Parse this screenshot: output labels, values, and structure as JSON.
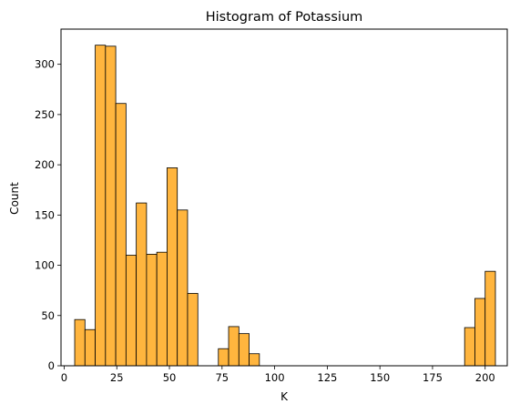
{
  "chart_data": {
    "type": "bar",
    "title": "Histogram of Potassium",
    "xlabel": "K",
    "ylabel": "Count",
    "xlim": [
      -1.5,
      210.5
    ],
    "ylim": [
      0,
      335
    ],
    "xticks": [
      0,
      25,
      50,
      75,
      100,
      125,
      150,
      175,
      200
    ],
    "yticks": [
      0,
      50,
      100,
      150,
      200,
      250,
      300
    ],
    "bin_width": 4.875,
    "bins": [
      {
        "x0": 5.0,
        "count": 46
      },
      {
        "x0": 9.875,
        "count": 36
      },
      {
        "x0": 14.75,
        "count": 319
      },
      {
        "x0": 19.625,
        "count": 318
      },
      {
        "x0": 24.5,
        "count": 261
      },
      {
        "x0": 29.375,
        "count": 110
      },
      {
        "x0": 34.25,
        "count": 162
      },
      {
        "x0": 39.125,
        "count": 111
      },
      {
        "x0": 44.0,
        "count": 113
      },
      {
        "x0": 48.875,
        "count": 197
      },
      {
        "x0": 53.75,
        "count": 155
      },
      {
        "x0": 58.625,
        "count": 72
      },
      {
        "x0": 73.25,
        "count": 17
      },
      {
        "x0": 78.125,
        "count": 39
      },
      {
        "x0": 83.0,
        "count": 32
      },
      {
        "x0": 87.875,
        "count": 12
      },
      {
        "x0": 190.25,
        "count": 38
      },
      {
        "x0": 195.125,
        "count": 67
      },
      {
        "x0": 200.0,
        "count": 94
      }
    ],
    "colors": {
      "bar_fill": "#ffb53e",
      "bar_edge": "#000000"
    },
    "grid": false,
    "legend": "none"
  }
}
